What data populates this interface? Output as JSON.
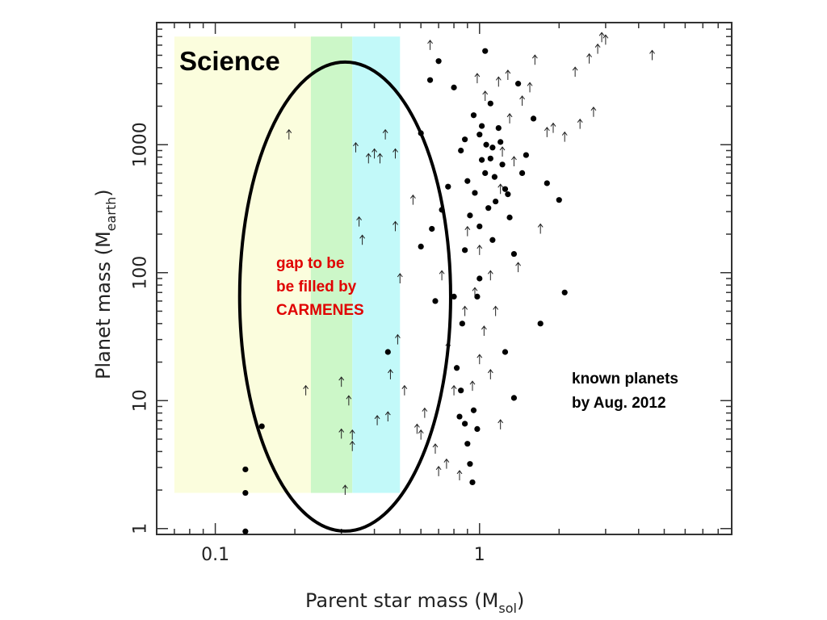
{
  "chart_data": {
    "type": "scatter",
    "xscale": "log",
    "yscale": "log",
    "xlim": [
      0.06,
      9
    ],
    "ylim": [
      0.9,
      9000
    ],
    "grid": false,
    "xlabel": "Parent star mass (M",
    "xlabel_sub": "sol",
    "xlabel_end": ")",
    "ylabel": "Planet mass (M",
    "ylabel_sub": "earth",
    "ylabel_end": ")",
    "x_ticks": [
      {
        "value": 0.1,
        "label": "0.1"
      },
      {
        "value": 1,
        "label": "1"
      }
    ],
    "y_ticks": [
      {
        "value": 1,
        "label": "1"
      },
      {
        "value": 10,
        "label": "10"
      },
      {
        "value": 100,
        "label": "100"
      },
      {
        "value": 1000,
        "label": "1000"
      }
    ],
    "bands": [
      {
        "x0": 0.07,
        "x1": 0.23,
        "y0": 1.9,
        "y1": 7000,
        "color": "#fbfddd"
      },
      {
        "x0": 0.23,
        "x1": 0.33,
        "y0": 1.9,
        "y1": 7000,
        "color": "#ccf7c8"
      },
      {
        "x0": 0.33,
        "x1": 0.5,
        "y0": 1.9,
        "y1": 7000,
        "color": "#c2f9f9"
      }
    ],
    "region": {
      "cx": 0.31,
      "cy": 65,
      "x_from": 0.14,
      "x_to": 0.88,
      "y_from": 0.95,
      "y_to": 4400
    },
    "annotations": {
      "science": "Science",
      "gap": [
        "gap to be",
        "be filled by",
        "CARMENES"
      ],
      "known": [
        "known planets",
        "by Aug. 2012"
      ]
    },
    "series": [
      {
        "marker": "dot",
        "points": [
          [
            0.13,
            0.95
          ],
          [
            0.13,
            1.9
          ],
          [
            0.13,
            2.9
          ],
          [
            0.15,
            6.3
          ],
          [
            0.45,
            24
          ],
          [
            0.6,
            160
          ],
          [
            0.6,
            1230
          ],
          [
            0.65,
            3200
          ],
          [
            0.66,
            220
          ],
          [
            0.68,
            60
          ],
          [
            0.7,
            4500
          ],
          [
            0.72,
            310
          ],
          [
            0.76,
            470
          ],
          [
            0.8,
            65
          ],
          [
            0.8,
            2800
          ],
          [
            0.82,
            18
          ],
          [
            0.84,
            7.5
          ],
          [
            0.85,
            12
          ],
          [
            0.86,
            40
          ],
          [
            0.88,
            6.6
          ],
          [
            0.88,
            150
          ],
          [
            0.9,
            4.6
          ],
          [
            0.92,
            3.2
          ],
          [
            0.94,
            2.3
          ],
          [
            0.95,
            8.4
          ],
          [
            0.98,
            6.0
          ],
          [
            0.98,
            65
          ],
          [
            1.0,
            90
          ],
          [
            1.0,
            230
          ],
          [
            1.02,
            1400
          ],
          [
            1.05,
            600
          ],
          [
            1.05,
            5400
          ],
          [
            1.1,
            780
          ],
          [
            1.1,
            2100
          ],
          [
            1.12,
            180
          ],
          [
            1.15,
            360
          ],
          [
            1.2,
            1050
          ],
          [
            1.25,
            450
          ],
          [
            1.25,
            24
          ],
          [
            1.3,
            270
          ],
          [
            1.35,
            10.5
          ],
          [
            1.35,
            140
          ],
          [
            1.4,
            3000
          ],
          [
            1.45,
            600
          ],
          [
            1.5,
            830
          ],
          [
            1.6,
            1600
          ],
          [
            1.7,
            40
          ],
          [
            1.8,
            500
          ],
          [
            2.0,
            370
          ],
          [
            2.1,
            70
          ],
          [
            0.85,
            900
          ],
          [
            0.9,
            520
          ],
          [
            0.95,
            1700
          ],
          [
            1.0,
            1200
          ],
          [
            1.08,
            320
          ],
          [
            1.12,
            950
          ],
          [
            1.18,
            1350
          ],
          [
            1.22,
            700
          ],
          [
            1.28,
            410
          ],
          [
            0.92,
            280
          ],
          [
            0.96,
            420
          ],
          [
            1.02,
            760
          ],
          [
            1.06,
            1000
          ],
          [
            1.14,
            560
          ],
          [
            0.88,
            1100
          ]
        ]
      },
      {
        "marker": "arrow",
        "points": [
          [
            0.19,
            1200
          ],
          [
            0.22,
            12
          ],
          [
            0.3,
            14
          ],
          [
            0.3,
            5.5
          ],
          [
            0.31,
            2.0
          ],
          [
            0.32,
            10
          ],
          [
            0.33,
            5.4
          ],
          [
            0.33,
            4.4
          ],
          [
            0.34,
            950
          ],
          [
            0.35,
            250
          ],
          [
            0.36,
            180
          ],
          [
            0.38,
            780
          ],
          [
            0.4,
            850
          ],
          [
            0.41,
            7
          ],
          [
            0.42,
            780
          ],
          [
            0.44,
            1200
          ],
          [
            0.45,
            7.5
          ],
          [
            0.46,
            16
          ],
          [
            0.48,
            230
          ],
          [
            0.48,
            850
          ],
          [
            0.49,
            30
          ],
          [
            0.5,
            90
          ],
          [
            0.52,
            12
          ],
          [
            0.56,
            370
          ],
          [
            0.58,
            6
          ],
          [
            0.6,
            5.4
          ],
          [
            0.62,
            8
          ],
          [
            0.65,
            6000
          ],
          [
            0.68,
            4.2
          ],
          [
            0.7,
            2.8
          ],
          [
            0.72,
            95
          ],
          [
            0.75,
            3.2
          ],
          [
            0.76,
            26
          ],
          [
            0.8,
            12
          ],
          [
            0.84,
            2.6
          ],
          [
            0.88,
            50
          ],
          [
            0.94,
            13
          ],
          [
            1.0,
            21
          ],
          [
            1.04,
            35
          ],
          [
            1.1,
            16
          ],
          [
            1.15,
            50
          ],
          [
            1.2,
            6.5
          ],
          [
            1.22,
            880
          ],
          [
            1.28,
            3500
          ],
          [
            1.3,
            1600
          ],
          [
            1.4,
            110
          ],
          [
            1.45,
            2200
          ],
          [
            1.55,
            2800
          ],
          [
            1.62,
            4600
          ],
          [
            1.7,
            220
          ],
          [
            1.8,
            1250
          ],
          [
            1.9,
            1350
          ],
          [
            2.1,
            1150
          ],
          [
            2.3,
            3700
          ],
          [
            2.4,
            1450
          ],
          [
            2.6,
            4700
          ],
          [
            2.7,
            1800
          ],
          [
            2.8,
            5600
          ],
          [
            3.0,
            6600
          ],
          [
            4.5,
            5000
          ],
          [
            2.9,
            6900
          ],
          [
            0.9,
            210
          ],
          [
            1.0,
            150
          ],
          [
            1.2,
            450
          ],
          [
            1.35,
            740
          ],
          [
            0.98,
            3300
          ],
          [
            1.05,
            2400
          ],
          [
            1.18,
            3100
          ],
          [
            0.96,
            70
          ],
          [
            1.1,
            95
          ]
        ]
      }
    ]
  }
}
